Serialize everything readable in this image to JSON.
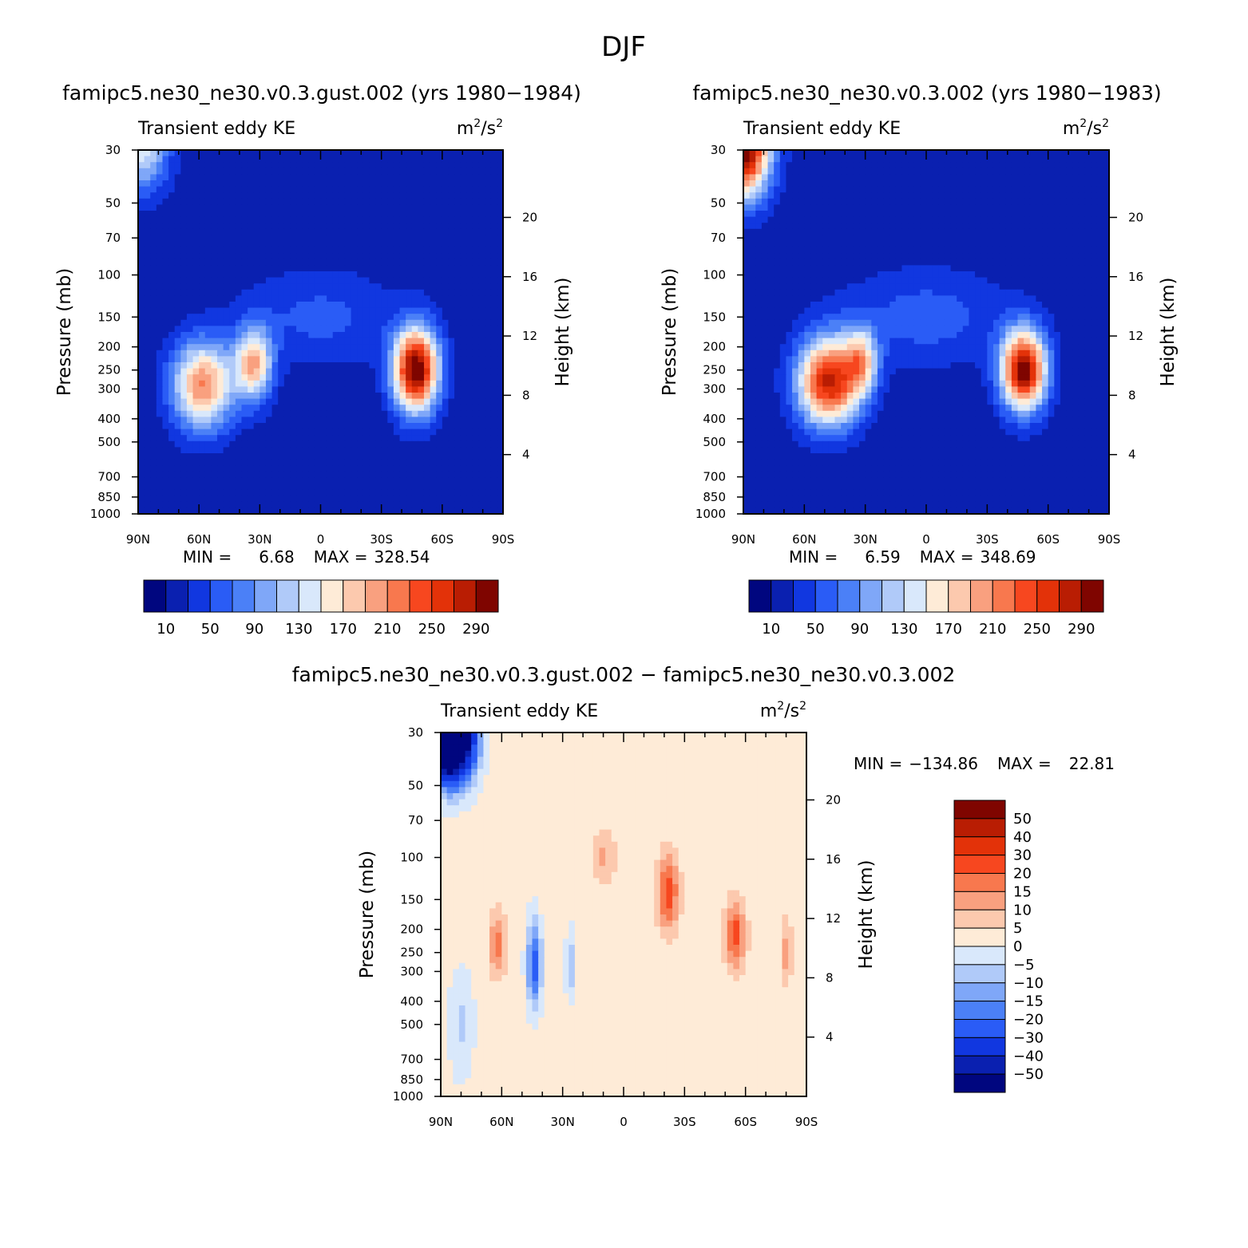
{
  "figure_title": "DJF",
  "colors": {
    "absolute_palette": [
      "#00067f",
      "#0a20b0",
      "#1137e0",
      "#2a5cf6",
      "#4b80f7",
      "#7fa7f8",
      "#b0caf9",
      "#d9e8fb",
      "#feebd7",
      "#fcc9ae",
      "#f9a07f",
      "#f8784e",
      "#f7471f",
      "#e33209",
      "#b91d03",
      "#7f0500"
    ],
    "difference_palette": [
      "#00067f",
      "#0a20b0",
      "#1137e0",
      "#2a5cf6",
      "#4b80f7",
      "#7fa7f8",
      "#b0caf9",
      "#d9e8fb",
      "#feebd7",
      "#fcc9ae",
      "#f9a07f",
      "#f8784e",
      "#f7471f",
      "#e33209",
      "#b91d03",
      "#7f0500"
    ]
  },
  "chart_data": [
    {
      "id": "panel-left",
      "type": "heatmap",
      "title": "famipc5.ne30_ne30.v0.3.gust.002 (yrs 1980−1984)",
      "subtitle_left": "Transient eddy KE",
      "units_base": "m",
      "units_sup1": "2",
      "units_mid": "/s",
      "units_sup2": "2",
      "ylabel": "Pressure (mb)",
      "ylabel_right": "Height (km)",
      "x_ticks": [
        "90N",
        "60N",
        "30N",
        "0",
        "30S",
        "60S",
        "90S"
      ],
      "y_ticks": [
        "30",
        "50",
        "70",
        "100",
        "150",
        "200",
        "250",
        "300",
        "400",
        "500",
        "700",
        "850",
        "1000"
      ],
      "height_ticks": [
        "20",
        "16",
        "12",
        "8",
        "4"
      ],
      "min_label": "MIN =",
      "min_value": "6.68",
      "max_label": "MAX =",
      "max_value": "328.54",
      "colorbar_labels": [
        "10",
        "50",
        "90",
        "130",
        "170",
        "210",
        "250",
        "290"
      ],
      "levels": [
        10,
        30,
        50,
        70,
        90,
        110,
        130,
        150,
        170,
        190,
        210,
        230,
        250,
        270,
        290
      ],
      "features": [
        {
          "lat": 58,
          "p": 290,
          "amp": 195,
          "slat": 15,
          "sp": 0.42
        },
        {
          "lat": 33,
          "p": 235,
          "amp": 170,
          "slat": 9,
          "sp": 0.35
        },
        {
          "lat": -47,
          "p": 250,
          "amp": 300,
          "slat": 11,
          "sp": 0.4
        },
        {
          "lat": 88,
          "p": 30,
          "amp": 120,
          "slat": 13,
          "sp": 0.4
        },
        {
          "lat": 0,
          "p": 150,
          "amp": 40,
          "slat": 38,
          "sp": 0.45
        }
      ],
      "background": 16
    },
    {
      "id": "panel-right",
      "type": "heatmap",
      "title": "famipc5.ne30_ne30.v0.3.002 (yrs 1980−1983)",
      "subtitle_left": "Transient eddy KE",
      "units_base": "m",
      "units_sup1": "2",
      "units_mid": "/s",
      "units_sup2": "2",
      "ylabel": "Pressure (mb)",
      "ylabel_right": "Height (km)",
      "x_ticks": [
        "90N",
        "60N",
        "30N",
        "0",
        "30S",
        "60S",
        "90S"
      ],
      "y_ticks": [
        "30",
        "50",
        "70",
        "100",
        "150",
        "200",
        "250",
        "300",
        "400",
        "500",
        "700",
        "850",
        "1000"
      ],
      "height_ticks": [
        "20",
        "16",
        "12",
        "8",
        "4"
      ],
      "min_label": "MIN =",
      "min_value": "6.59",
      "max_label": "MAX =",
      "max_value": "348.69",
      "colorbar_labels": [
        "10",
        "50",
        "90",
        "130",
        "170",
        "210",
        "250",
        "290"
      ],
      "levels": [
        10,
        30,
        50,
        70,
        90,
        110,
        130,
        150,
        170,
        190,
        210,
        230,
        250,
        270,
        290
      ],
      "features": [
        {
          "lat": 48,
          "p": 280,
          "amp": 260,
          "slat": 15,
          "sp": 0.42
        },
        {
          "lat": 32,
          "p": 230,
          "amp": 130,
          "slat": 8,
          "sp": 0.32
        },
        {
          "lat": -48,
          "p": 250,
          "amp": 290,
          "slat": 11,
          "sp": 0.38
        },
        {
          "lat": 90,
          "p": 30,
          "amp": 300,
          "slat": 13,
          "sp": 0.45
        },
        {
          "lat": 0,
          "p": 150,
          "amp": 45,
          "slat": 40,
          "sp": 0.45
        }
      ],
      "background": 16
    },
    {
      "id": "panel-diff",
      "type": "heatmap",
      "title": "famipc5.ne30_ne30.v0.3.gust.002 − famipc5.ne30_ne30.v0.3.002",
      "subtitle_left": "Transient eddy KE",
      "units_base": "m",
      "units_sup1": "2",
      "units_mid": "/s",
      "units_sup2": "2",
      "ylabel": "Pressure (mb)",
      "ylabel_right": "Height (km)",
      "x_ticks": [
        "90N",
        "60N",
        "30N",
        "0",
        "30S",
        "60S",
        "90S"
      ],
      "y_ticks": [
        "30",
        "50",
        "70",
        "100",
        "150",
        "200",
        "250",
        "300",
        "400",
        "500",
        "700",
        "850",
        "1000"
      ],
      "height_ticks": [
        "20",
        "16",
        "12",
        "8",
        "4"
      ],
      "min_label": "MIN =",
      "min_value": "−134.86",
      "max_label": "MAX =",
      "max_value": "22.81",
      "colorbar_labels": [
        "50",
        "40",
        "30",
        "20",
        "15",
        "10",
        "5",
        "0",
        "−5",
        "−10",
        "−15",
        "−20",
        "−30",
        "−40",
        "−50"
      ],
      "levels": [
        -50,
        -40,
        -30,
        -20,
        -15,
        -10,
        -5,
        0,
        5,
        10,
        15,
        20,
        30,
        40,
        50
      ],
      "features": [
        {
          "lat": 85,
          "p": 30,
          "amp": -130,
          "slat": 10,
          "sp": 0.4
        },
        {
          "lat": 62,
          "p": 230,
          "amp": 16,
          "slat": 4,
          "sp": 0.3
        },
        {
          "lat": 44,
          "p": 280,
          "amp": -26,
          "slat": 3.5,
          "sp": 0.4
        },
        {
          "lat": 26,
          "p": 280,
          "amp": -12,
          "slat": 2.5,
          "sp": 0.3
        },
        {
          "lat": -22,
          "p": 140,
          "amp": 22,
          "slat": 5,
          "sp": 0.35
        },
        {
          "lat": -55,
          "p": 210,
          "amp": 21,
          "slat": 5,
          "sp": 0.32
        },
        {
          "lat": -80,
          "p": 250,
          "amp": 11,
          "slat": 3,
          "sp": 0.3
        },
        {
          "lat": 10,
          "p": 100,
          "amp": 9,
          "slat": 6,
          "sp": 0.25
        },
        {
          "lat": 80,
          "p": 500,
          "amp": -8,
          "slat": 6,
          "sp": 0.5
        }
      ],
      "background": 2
    }
  ]
}
